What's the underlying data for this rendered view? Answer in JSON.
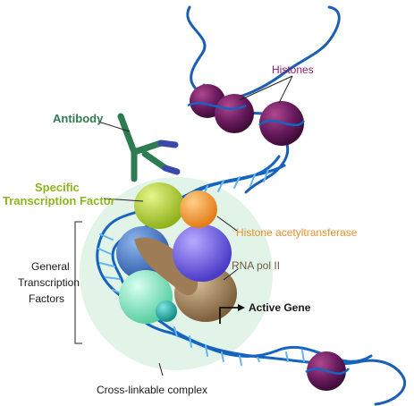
{
  "labels": {
    "histones": "Histones",
    "antibody": "Antibody",
    "specific_tf_line1": "Specific",
    "specific_tf_line2": "Transcription Factor",
    "histone_acetyltransferase": "Histone acetyltransferase",
    "general_tf_line1": "General",
    "general_tf_line2": "Transcription",
    "general_tf_line3": "Factors",
    "rna_pol_ii": "RNA pol II",
    "active_gene": "Active Gene",
    "cross_linkable_complex": "Cross-linkable complex"
  },
  "colors": {
    "dna_strand": "#1565c0",
    "dna_rungs": "#64b5f6",
    "histone": "#6a1b5f",
    "complex_bg": "#dff1e6",
    "antibody": "#2e7d52",
    "antibody_tips": "#3949ab",
    "specific_tf": "#a6c82a",
    "histone_acetyltransferase": "#f39a2b",
    "general_tf_blue": "#3a6fc0",
    "general_tf_mint": "#7fe0b8",
    "general_tf_teal": "#1ea7a0",
    "rna_pol_ii": "#9d7c56",
    "purple_factor": "#5b4bd6",
    "label_histones": "#8b1a6a",
    "label_antibody": "#2e7d52",
    "label_specific_tf": "#8ab61e",
    "label_hat": "#e8902a",
    "label_rna_pol": "#6e5a44",
    "label_dark": "#1a1a1a"
  }
}
